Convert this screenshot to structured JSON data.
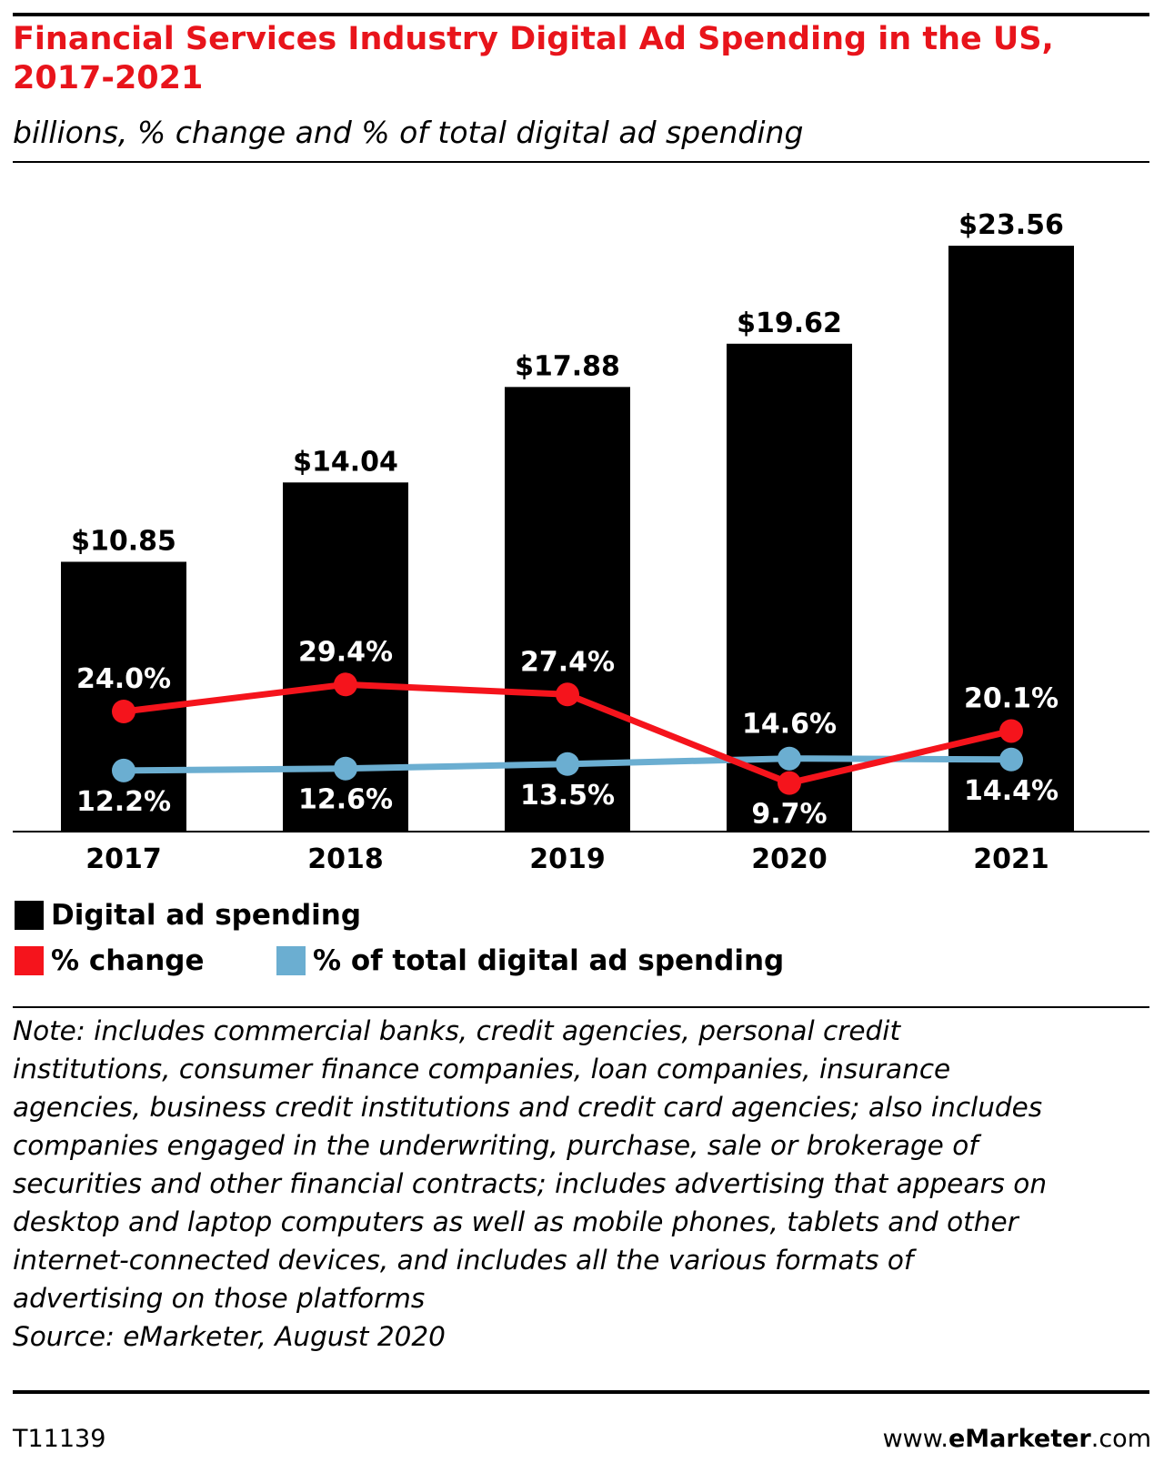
{
  "title": "Financial Services Industry Digital Ad Spending in the US, 2017-2021",
  "subtitle": "billions, % change and % of total digital ad spending",
  "colors": {
    "bar": "#000000",
    "change": "#f5141c",
    "share": "#6baed1",
    "title": "#e8141b"
  },
  "chart_data": {
    "type": "bar",
    "categories": [
      "2017",
      "2018",
      "2019",
      "2020",
      "2021"
    ],
    "series": [
      {
        "name": "Digital ad spending",
        "type": "bar",
        "values": [
          10.85,
          14.04,
          17.88,
          19.62,
          23.56
        ],
        "labels": [
          "$10.85",
          "$14.04",
          "$17.88",
          "$19.62",
          "$23.56"
        ]
      },
      {
        "name": "% change",
        "type": "line",
        "values": [
          24.0,
          29.4,
          27.4,
          9.7,
          20.1
        ],
        "labels": [
          "24.0%",
          "29.4%",
          "27.4%",
          "9.7%",
          "20.1%"
        ]
      },
      {
        "name": "% of total digital ad spending",
        "type": "line",
        "values": [
          12.2,
          12.6,
          13.5,
          14.6,
          14.4
        ],
        "labels": [
          "12.2%",
          "12.6%",
          "13.5%",
          "14.6%",
          "14.4%"
        ]
      }
    ],
    "legend_position": "bottom"
  },
  "legend": {
    "bar": "Digital ad spending",
    "change": "% change",
    "share": "% of total digital ad spending"
  },
  "note_lines": [
    "Note: includes commercial banks, credit agencies, personal credit",
    "institutions, consumer finance companies, loan companies, insurance",
    "agencies, business credit institutions and credit card agencies; also includes",
    "companies engaged in the underwriting, purchase, sale or brokerage of",
    "securities and other financial contracts; includes advertising that appears on",
    "desktop and laptop computers as well as mobile phones, tablets and other",
    "internet-connected devices, and includes all the various formats of",
    "advertising on those platforms"
  ],
  "source": "Source: eMarketer, August 2020",
  "footer": {
    "id": "T11139",
    "brand_prefix": "www.",
    "brand_bold": "eMarketer",
    "brand_suffix": ".com"
  }
}
